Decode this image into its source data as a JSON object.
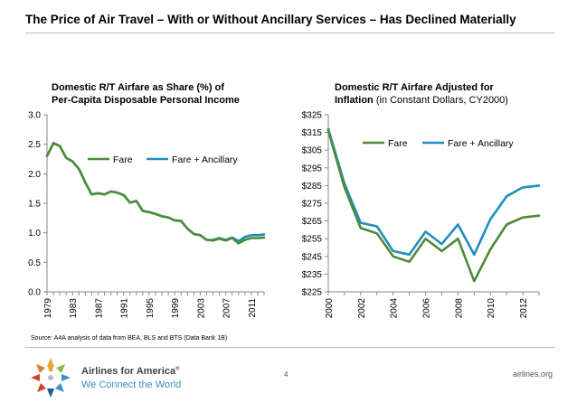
{
  "slide": {
    "title": "The Price of Air Travel – With or Without Ancillary Services – Has Declined Materially",
    "source": "Source: A4A analysis of data from BEA, BLS and BTS (Data Bank 1B)",
    "brand_name": "Airlines for America",
    "brand_mark": "®",
    "tagline": "We Connect the World",
    "page_number": "4",
    "website": "airlines.org"
  },
  "colors": {
    "fare": "#4e8a3a",
    "fare_ancillary": "#1f8fbf"
  },
  "chart_data": [
    {
      "type": "line",
      "title_bold": "Domestic R/T Airfare as Share (%) of Per-Capita Disposable Personal Income",
      "title_line1": "Domestic R/T Airfare as Share (%) of",
      "title_line2": "Per-Capita Disposable Personal Income",
      "xlabel": "",
      "ylabel": "",
      "ylim": [
        0.0,
        3.0
      ],
      "yticks": [
        "0.0",
        "0.5",
        "1.0",
        "1.5",
        "2.0",
        "2.5",
        "3.0"
      ],
      "xlim": [
        1979,
        2013
      ],
      "xticks": [
        "1979",
        "1983",
        "1987",
        "1991",
        "1995",
        "1999",
        "2003",
        "2007",
        "2011"
      ],
      "grid": false,
      "legend_position": "upper-center",
      "x": [
        1979,
        1980,
        1981,
        1982,
        1983,
        1984,
        1985,
        1986,
        1987,
        1988,
        1989,
        1990,
        1991,
        1992,
        1993,
        1994,
        1995,
        1996,
        1997,
        1998,
        1999,
        2000,
        2001,
        2002,
        2003,
        2004,
        2005,
        2006,
        2007,
        2008,
        2009,
        2010,
        2011,
        2012,
        2013
      ],
      "series": [
        {
          "name": "Fare",
          "color_key": "fare",
          "values": [
            2.3,
            2.52,
            2.47,
            2.27,
            2.21,
            2.08,
            1.85,
            1.65,
            1.67,
            1.65,
            1.7,
            1.68,
            1.64,
            1.51,
            1.54,
            1.37,
            1.35,
            1.32,
            1.28,
            1.26,
            1.21,
            1.2,
            1.07,
            0.98,
            0.96,
            0.88,
            0.87,
            0.9,
            0.87,
            0.91,
            0.82,
            0.88,
            0.91,
            0.91,
            0.92
          ]
        },
        {
          "name": "Fare + Ancillary",
          "color_key": "fare_ancillary",
          "values": [
            2.3,
            2.52,
            2.47,
            2.27,
            2.21,
            2.08,
            1.85,
            1.65,
            1.67,
            1.65,
            1.7,
            1.68,
            1.64,
            1.51,
            1.54,
            1.37,
            1.35,
            1.32,
            1.28,
            1.26,
            1.21,
            1.2,
            1.07,
            0.98,
            0.96,
            0.88,
            0.88,
            0.91,
            0.88,
            0.92,
            0.86,
            0.93,
            0.96,
            0.96,
            0.97
          ]
        }
      ]
    },
    {
      "type": "line",
      "title_bold": "Domestic R/T Airfare Adjusted for Inflation",
      "title_plain": "(in Constant Dollars, CY2000)",
      "title_line1": "Domestic R/T Airfare Adjusted for",
      "title_line2_bold": "Inflation",
      "title_line2_plain": " (in Constant Dollars, CY2000)",
      "xlabel": "",
      "ylabel": "",
      "ylim": [
        225,
        325
      ],
      "yticks": [
        "$225",
        "$235",
        "$245",
        "$255",
        "$265",
        "$275",
        "$285",
        "$295",
        "$305",
        "$315",
        "$325"
      ],
      "xlim": [
        2000,
        2013
      ],
      "xticks": [
        "2000",
        "2002",
        "2004",
        "2006",
        "2008",
        "2010",
        "2012"
      ],
      "grid": false,
      "legend_position": "upper-center",
      "x": [
        2000,
        2001,
        2002,
        2003,
        2004,
        2005,
        2006,
        2007,
        2008,
        2009,
        2010,
        2011,
        2012,
        2013
      ],
      "series": [
        {
          "name": "Fare",
          "color_key": "fare",
          "values": [
            316,
            284,
            261,
            258,
            245,
            242,
            255,
            248,
            255,
            231,
            249,
            263,
            267,
            268
          ]
        },
        {
          "name": "Fare + Ancillary",
          "color_key": "fare_ancillary",
          "values": [
            317,
            286,
            264,
            262,
            248,
            246,
            259,
            252,
            263,
            246,
            266,
            279,
            284,
            285
          ]
        }
      ]
    }
  ]
}
